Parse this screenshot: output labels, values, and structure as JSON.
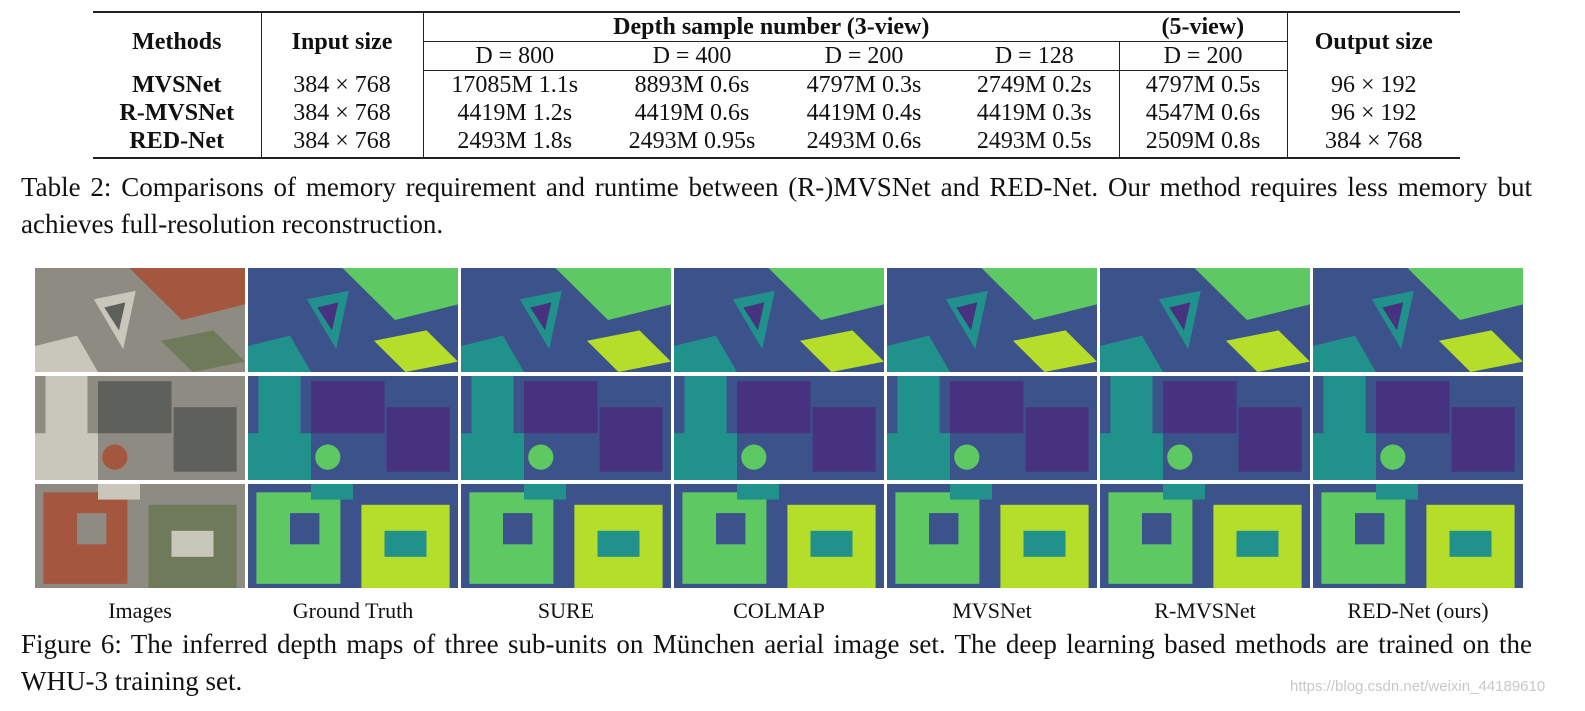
{
  "table": {
    "header": {
      "methods": "Methods",
      "input_size": "Input size",
      "depth_3view": "Depth sample number (3-view)",
      "depth_5view": "(5-view)",
      "output_size": "Output size",
      "sub": [
        "D = 800",
        "D = 400",
        "D = 200",
        "D = 128",
        "D = 200"
      ]
    },
    "rows": [
      [
        "MVSNet",
        "384 × 768",
        "17085M 1.1s",
        "8893M 0.6s",
        "4797M 0.3s",
        "2749M 0.2s",
        "4797M 0.5s",
        "96 × 192"
      ],
      [
        "R-MVSNet",
        "384 × 768",
        "4419M 1.2s",
        "4419M 0.6s",
        "4419M 0.4s",
        "4419M 0.3s",
        "4547M 0.6s",
        "96 × 192"
      ],
      [
        "RED-Net",
        "384 × 768",
        "2493M 1.8s",
        "2493M 0.95s",
        "2493M 0.6s",
        "2493M 0.5s",
        "2509M 0.8s",
        "384 × 768"
      ]
    ]
  },
  "table_caption": "Table 2: Comparisons of memory requirement and runtime between (R-)MVSNet and RED-Net. Our method requires less memory but achieves full-resolution reconstruction.",
  "figure": {
    "columns": [
      "Images",
      "Ground Truth",
      "SURE",
      "COLMAP",
      "MVSNet",
      "R-MVSNet",
      "RED-Net (ours)"
    ],
    "caption": "Figure 6: The inferred depth maps of three sub-units on München aerial image set. The deep learning based methods are trained on the WHU-3 training set."
  },
  "watermark": "https://blog.csdn.net/weixin_44189610"
}
